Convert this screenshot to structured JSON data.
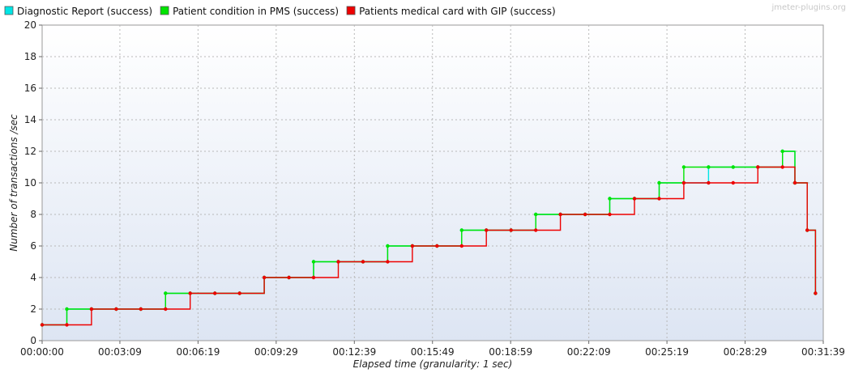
{
  "chart_data": {
    "type": "line",
    "watermark": "jmeter-plugins.org",
    "xlabel": "Elapsed time (granularity: 1 sec)",
    "ylabel": "Number of transactions /sec",
    "xlim": [
      "00:00:00",
      "00:31:39"
    ],
    "ylim": [
      0,
      20
    ],
    "x_tick_labels": [
      "00:00:00",
      "00:03:09",
      "00:06:19",
      "00:09:29",
      "00:12:39",
      "00:15:49",
      "00:18:59",
      "00:22:09",
      "00:25:19",
      "00:28:29",
      "00:31:39"
    ],
    "y_tick_labels": [
      "0",
      "2",
      "4",
      "6",
      "8",
      "10",
      "12",
      "14",
      "16",
      "18",
      "20"
    ],
    "grid": true,
    "legend_position": "top",
    "series": [
      {
        "name": "Diagnostic Report (success)",
        "color": "#00e5e5",
        "x": [
          "00:00:00",
          "00:01:00",
          "00:02:00",
          "00:03:00",
          "00:04:00",
          "00:05:00",
          "00:06:00",
          "00:07:00",
          "00:08:00",
          "00:09:00",
          "00:10:00",
          "00:11:00",
          "00:12:00",
          "00:13:00",
          "00:14:00",
          "00:15:00",
          "00:16:00",
          "00:17:00",
          "00:18:00",
          "00:19:00",
          "00:20:00",
          "00:21:00",
          "00:22:00",
          "00:23:00",
          "00:24:00",
          "00:25:00",
          "00:26:00",
          "00:27:00",
          "00:28:00",
          "00:29:00",
          "00:30:00",
          "00:30:30",
          "00:31:00",
          "00:31:20"
        ],
        "y": [
          1,
          2,
          2,
          2,
          2,
          3,
          3,
          3,
          3,
          4,
          4,
          5,
          5,
          5,
          6,
          6,
          6,
          7,
          7,
          7,
          8,
          8,
          8,
          9,
          9,
          10,
          10,
          11,
          11,
          11,
          12,
          10,
          7,
          3
        ]
      },
      {
        "name": "Patient condition in PMS (success)",
        "color": "#00e400",
        "x": [
          "00:00:00",
          "00:01:00",
          "00:02:00",
          "00:03:00",
          "00:04:00",
          "00:05:00",
          "00:06:00",
          "00:07:00",
          "00:08:00",
          "00:09:00",
          "00:10:00",
          "00:11:00",
          "00:12:00",
          "00:13:00",
          "00:14:00",
          "00:15:00",
          "00:16:00",
          "00:17:00",
          "00:18:00",
          "00:19:00",
          "00:20:00",
          "00:21:00",
          "00:22:00",
          "00:23:00",
          "00:24:00",
          "00:25:00",
          "00:26:00",
          "00:27:00",
          "00:28:00",
          "00:29:00",
          "00:30:00",
          "00:30:30",
          "00:31:00",
          "00:31:20"
        ],
        "y": [
          1,
          2,
          2,
          2,
          2,
          3,
          3,
          3,
          3,
          4,
          4,
          5,
          5,
          5,
          6,
          6,
          6,
          7,
          7,
          7,
          8,
          8,
          8,
          9,
          9,
          10,
          11,
          11,
          11,
          11,
          12,
          10,
          7,
          3
        ]
      },
      {
        "name": "Patients medical card with GIP (success)",
        "color": "#ee0000",
        "x": [
          "00:00:00",
          "00:01:00",
          "00:02:00",
          "00:03:00",
          "00:04:00",
          "00:05:00",
          "00:06:00",
          "00:07:00",
          "00:08:00",
          "00:09:00",
          "00:10:00",
          "00:11:00",
          "00:12:00",
          "00:13:00",
          "00:14:00",
          "00:15:00",
          "00:16:00",
          "00:17:00",
          "00:18:00",
          "00:19:00",
          "00:20:00",
          "00:21:00",
          "00:22:00",
          "00:23:00",
          "00:24:00",
          "00:25:00",
          "00:26:00",
          "00:27:00",
          "00:28:00",
          "00:29:00",
          "00:30:00",
          "00:30:30",
          "00:31:00",
          "00:31:20"
        ],
        "y": [
          1,
          1,
          2,
          2,
          2,
          2,
          3,
          3,
          3,
          4,
          4,
          4,
          5,
          5,
          5,
          6,
          6,
          6,
          7,
          7,
          7,
          8,
          8,
          8,
          9,
          9,
          10,
          10,
          10,
          11,
          11,
          10,
          7,
          3
        ]
      }
    ]
  }
}
